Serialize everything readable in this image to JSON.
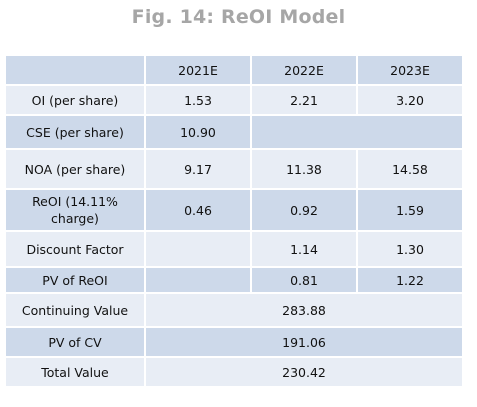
{
  "title": "Fig. 14: ReOI Model",
  "table": {
    "headers": [
      "",
      "2021E",
      "2022E",
      "2023E"
    ],
    "rows": [
      {
        "label": "OI (per share)",
        "v2021": "1.53",
        "v2022": "2.21",
        "v2023": "3.20"
      },
      {
        "label": "CSE (per share)",
        "v2021": "10.90"
      },
      {
        "label": "NOA (per share)",
        "v2021": "9.17",
        "v2022": "11.38",
        "v2023": "14.58"
      },
      {
        "label_line1": "ReOI (14.11%",
        "label_line2": "charge)",
        "v2021": "0.46",
        "v2022": "0.92",
        "v2023": "1.59"
      },
      {
        "label": "Discount Factor",
        "v2022": "1.14",
        "v2023": "1.30"
      },
      {
        "label": "PV of ReOI",
        "v2022": "0.81",
        "v2023": "1.22"
      },
      {
        "label": "Continuing Value",
        "value": "283.88"
      },
      {
        "label": "PV of CV",
        "value": "191.06"
      },
      {
        "label": "Total Value",
        "value": "230.42"
      }
    ]
  }
}
